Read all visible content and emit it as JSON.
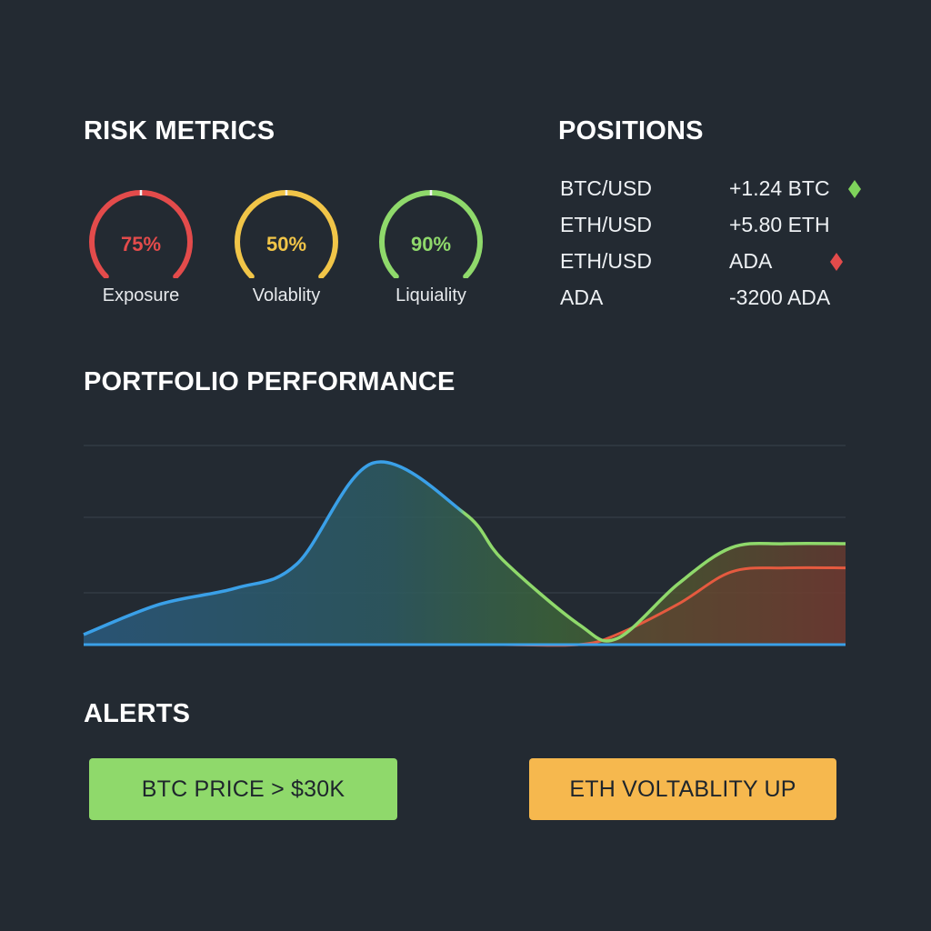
{
  "risk_metrics": {
    "title": "RISK METRICS",
    "gauges": [
      {
        "value_text": "75%",
        "value": 0.75,
        "label": "Exposure",
        "color": "#e34b4b"
      },
      {
        "value_text": "50%",
        "value": 0.5,
        "label": "Volablity",
        "color": "#f1c548"
      },
      {
        "value_text": "90%",
        "value": 0.9,
        "label": "Liquiality",
        "color": "#8fd96b"
      }
    ]
  },
  "positions": {
    "title": "POSITIONS",
    "rows": [
      {
        "pair": "BTC/USD",
        "amount": "+1.24 BTC",
        "indicator": "diamond-green-icon"
      },
      {
        "pair": "ETH/USD",
        "amount": "+5.80 ETH",
        "indicator": ""
      },
      {
        "pair": "ETH/USD",
        "amount": "ADA",
        "indicator": "diamond-red-icon"
      },
      {
        "pair": "ADA",
        "amount": "-3200 ADA",
        "indicator": ""
      }
    ],
    "colors": {
      "up": "#7ed35b",
      "down": "#e34b4b"
    }
  },
  "performance": {
    "title": "PORTFOLIO PERFORMANCE"
  },
  "chart_data": {
    "type": "area",
    "title": "",
    "xlabel": "",
    "ylabel": "",
    "grid": true,
    "x": [
      0,
      0.1,
      0.2,
      0.28,
      0.38,
      0.5,
      0.55,
      0.65,
      0.7,
      0.78,
      0.85,
      0.92,
      1.0
    ],
    "series": [
      {
        "values": [
          0.05,
          0.2,
          0.28,
          0.4,
          0.9,
          0.65,
          0.42,
          0.1,
          0.03,
          0.3,
          0.48,
          0.5,
          0.5
        ],
        "color": "#3aa0e8"
      },
      {
        "values": [
          0,
          0,
          0,
          0,
          0,
          0,
          0,
          0,
          0.05,
          0.2,
          0.36,
          0.38,
          0.38
        ],
        "color": "#e55a3f"
      }
    ],
    "ylim": [
      0,
      1
    ]
  },
  "alerts": {
    "title": "ALERTS",
    "items": [
      {
        "text": "BTC PRICE > $30K",
        "color": "#8fd96b"
      },
      {
        "text": "ETH VOLTABLITY UP",
        "color": "#f6b84e"
      }
    ]
  }
}
